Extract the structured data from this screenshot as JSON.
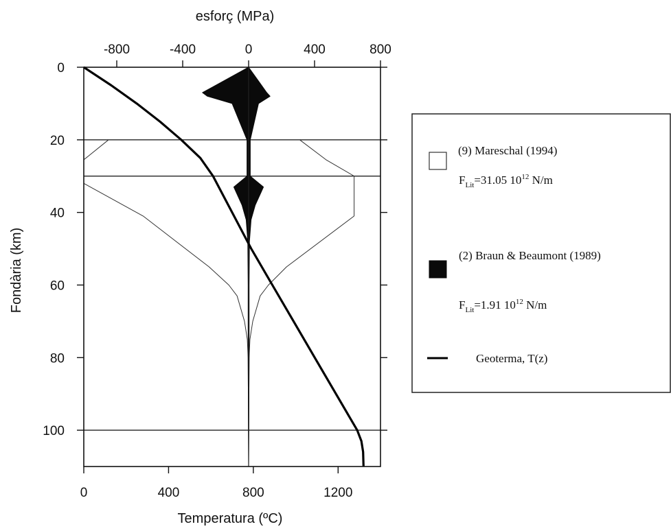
{
  "chart_data": {
    "type": "line",
    "top_axis": {
      "label": "esforç (MPa)",
      "ticks": [
        -800,
        -400,
        0,
        400,
        800
      ],
      "tick_labels": [
        "-800",
        "-400",
        "0",
        "400",
        "800"
      ],
      "range": [
        -1000,
        800
      ]
    },
    "bottom_axis": {
      "label": "Temperatura (ºC)",
      "ticks": [
        0,
        400,
        800,
        1200
      ],
      "tick_labels": [
        "0",
        "400",
        "800",
        "1200"
      ],
      "range": [
        0,
        1400
      ]
    },
    "y_axis": {
      "label": "Fondària (km)",
      "ticks": [
        0,
        20,
        40,
        60,
        80,
        100
      ],
      "tick_labels": [
        "0",
        "20",
        "40",
        "60",
        "80",
        "100"
      ],
      "range": [
        0,
        110
      ],
      "inverted": true
    },
    "horizontal_lines_km": [
      20,
      30,
      100
    ],
    "series": [
      {
        "name": "(9) Mareschal (1994)",
        "force_main": "F",
        "force_sub": "Lit",
        "force_value": "=31.05 10",
        "force_exp": "12",
        "force_unit": " N/m",
        "style": "open-outline",
        "depth_km": [
          0,
          20,
          20,
          25.5,
          30,
          30,
          32,
          41,
          55,
          60,
          63,
          70,
          75,
          80,
          110
        ],
        "stress_left_MPa": [
          0,
          0,
          -850,
          -1000,
          -1000,
          -1000,
          -1000,
          -640,
          -240,
          -120,
          -70,
          -25,
          -8,
          -3,
          0
        ],
        "stress_right_MPa": [
          0,
          0,
          310,
          470,
          640,
          640,
          640,
          640,
          230,
          120,
          70,
          25,
          8,
          3,
          0
        ]
      },
      {
        "name": "(2) Braun & Beaumont (1989)",
        "force_main": "F",
        "force_sub": "Lit",
        "force_value": "=1.91 10",
        "force_exp": "12",
        "force_unit": " N/m",
        "style": "filled",
        "depth_km": [
          0,
          7,
          8,
          10,
          20,
          30,
          33,
          38,
          42,
          48,
          60,
          80,
          110
        ],
        "stress_left_MPa": [
          0,
          -280,
          -250,
          -100,
          -10,
          -10,
          -90,
          -40,
          -15,
          -5,
          -3,
          -3,
          0
        ],
        "stress_right_MPa": [
          0,
          110,
          130,
          60,
          10,
          10,
          90,
          40,
          15,
          5,
          3,
          3,
          0
        ]
      },
      {
        "name": "Geoterma, T(z)",
        "style": "thick-line",
        "depth_km": [
          0,
          5,
          10,
          15,
          20,
          25,
          30,
          40,
          50,
          60,
          70,
          80,
          90,
          100,
          103,
          106,
          110
        ],
        "temperature_C": [
          0,
          130,
          250,
          360,
          460,
          550,
          610,
          700,
          790,
          890,
          990,
          1090,
          1190,
          1290,
          1310,
          1318,
          1320
        ]
      }
    ]
  }
}
